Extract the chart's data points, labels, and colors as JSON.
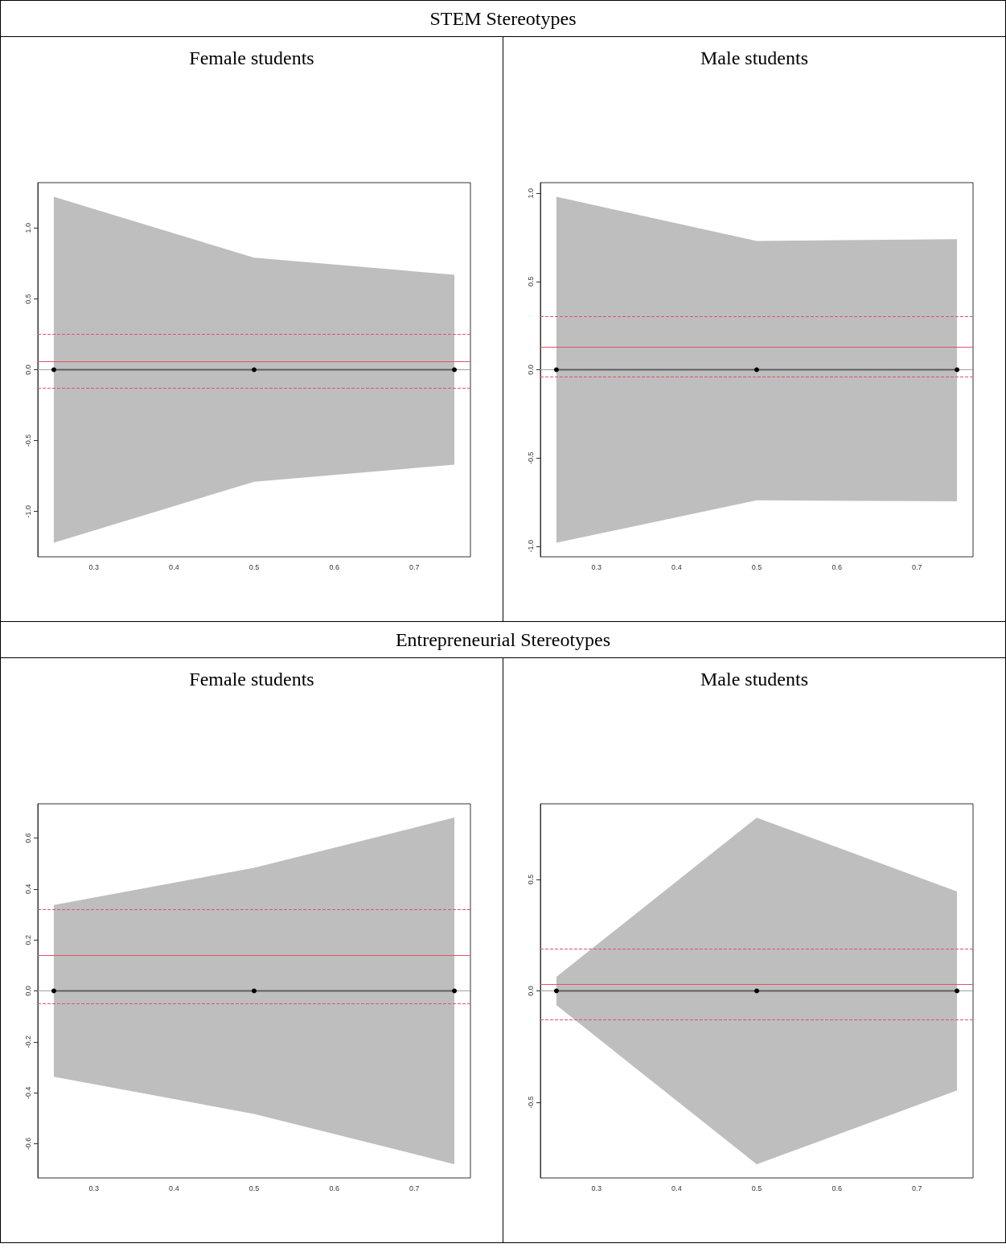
{
  "chart_data": [
    {
      "type": "line",
      "title": "Female students",
      "annotations": [
        "STEM Stereotypes"
      ],
      "x": [
        0.25,
        0.5,
        0.75
      ],
      "xlim": [
        0.23,
        0.77
      ],
      "xticks": [
        0.3,
        0.4,
        0.5,
        0.6,
        0.7
      ],
      "ylim": [
        -1.32,
        1.32
      ],
      "yticks": [
        {
          "value": -1,
          "label": "-1.0"
        },
        -0.5,
        {
          "value": 0,
          "label": "0.0"
        },
        0.5,
        {
          "value": 1,
          "label": "1.0"
        }
      ],
      "grid": false,
      "marker": "circle",
      "line_style": "solid",
      "series": [
        {
          "color": "#000000",
          "values": [
            0,
            0,
            0
          ],
          "lower": [
            -1.22,
            -0.79,
            -0.67
          ],
          "upper": [
            1.22,
            0.79,
            0.67
          ]
        }
      ],
      "ref_lines": [
        {
          "axis": "y",
          "value": 0,
          "color": "#a0a0a0",
          "line_style": "solid"
        },
        {
          "axis": "y",
          "value": 0.057,
          "color": "#df536b",
          "line_style": "solid"
        },
        {
          "axis": "y",
          "value": 0.248,
          "color": "#df536b",
          "line_style": "dashed"
        },
        {
          "axis": "y",
          "value": -0.131,
          "color": "#df536b",
          "line_style": "dashed"
        }
      ]
    },
    {
      "type": "line",
      "title": "Male students",
      "x": [
        0.25,
        0.5,
        0.75
      ],
      "xlim": [
        0.23,
        0.77
      ],
      "xticks": [
        0.3,
        0.4,
        0.5,
        0.6,
        0.7
      ],
      "ylim": [
        -1.06,
        1.06
      ],
      "yticks": [
        {
          "value": -1,
          "label": "-1.0"
        },
        -0.5,
        {
          "value": 0,
          "label": "0.0"
        },
        0.5,
        {
          "value": 1,
          "label": "1.0"
        }
      ],
      "grid": false,
      "marker": "circle",
      "line_style": "solid",
      "series": [
        {
          "color": "#000000",
          "values": [
            0,
            0,
            0
          ],
          "lower": [
            -0.98,
            -0.74,
            -0.745
          ],
          "upper": [
            0.98,
            0.73,
            0.74
          ]
        }
      ],
      "ref_lines": [
        {
          "axis": "y",
          "value": 0,
          "color": "#a0a0a0",
          "line_style": "solid"
        },
        {
          "axis": "y",
          "value": 0.127,
          "color": "#df536b",
          "line_style": "solid"
        },
        {
          "axis": "y",
          "value": 0.297,
          "color": "#df536b",
          "line_style": "dashed"
        },
        {
          "axis": "y",
          "value": -0.041,
          "color": "#df536b",
          "line_style": "dashed"
        }
      ]
    },
    {
      "type": "line",
      "title": "Female students",
      "annotations": [
        "Entrepreneurial Stereotypes"
      ],
      "x": [
        0.25,
        0.5,
        0.75
      ],
      "xlim": [
        0.23,
        0.77
      ],
      "xticks": [
        0.3,
        0.4,
        0.5,
        0.6,
        0.7
      ],
      "ylim": [
        -0.734,
        0.734
      ],
      "yticks": [
        -0.6,
        -0.4,
        -0.2,
        {
          "value": 0,
          "label": "0.0"
        },
        0.2,
        0.4,
        0.6
      ],
      "grid": false,
      "marker": "circle",
      "line_style": "solid",
      "series": [
        {
          "color": "#000000",
          "values": [
            0,
            0,
            0
          ],
          "lower": [
            -0.337,
            -0.483,
            -0.68
          ],
          "upper": [
            0.337,
            0.483,
            0.68
          ]
        }
      ],
      "ref_lines": [
        {
          "axis": "y",
          "value": 0,
          "color": "#a0a0a0",
          "line_style": "solid"
        },
        {
          "axis": "y",
          "value": 0.139,
          "color": "#df536b",
          "line_style": "solid"
        },
        {
          "axis": "y",
          "value": 0.324,
          "color": "#df536b",
          "line_style": "dashed"
        },
        {
          "axis": "y",
          "value": -0.049,
          "color": "#df536b",
          "line_style": "dashed"
        }
      ]
    },
    {
      "type": "line",
      "title": "Male students",
      "x": [
        0.25,
        0.5,
        0.75
      ],
      "xlim": [
        0.23,
        0.77
      ],
      "xticks": [
        0.3,
        0.4,
        0.5,
        0.6,
        0.7
      ],
      "ylim": [
        -0.839,
        0.839
      ],
      "yticks": [
        -0.5,
        {
          "value": 0,
          "label": "0.0"
        },
        0.5
      ],
      "grid": false,
      "marker": "circle",
      "line_style": "solid",
      "series": [
        {
          "color": "#000000",
          "values": [
            0,
            0,
            0
          ],
          "lower": [
            -0.064,
            -0.778,
            -0.447
          ],
          "upper": [
            0.063,
            0.777,
            0.446
          ]
        }
      ],
      "ref_lines": [
        {
          "axis": "y",
          "value": 0,
          "color": "#a0a0a0",
          "line_style": "solid"
        },
        {
          "axis": "y",
          "value": 0.031,
          "color": "#df536b",
          "line_style": "solid"
        },
        {
          "axis": "y",
          "value": 0.191,
          "color": "#df536b",
          "line_style": "dashed"
        },
        {
          "axis": "y",
          "value": -0.128,
          "color": "#df536b",
          "line_style": "dashed"
        }
      ]
    }
  ]
}
